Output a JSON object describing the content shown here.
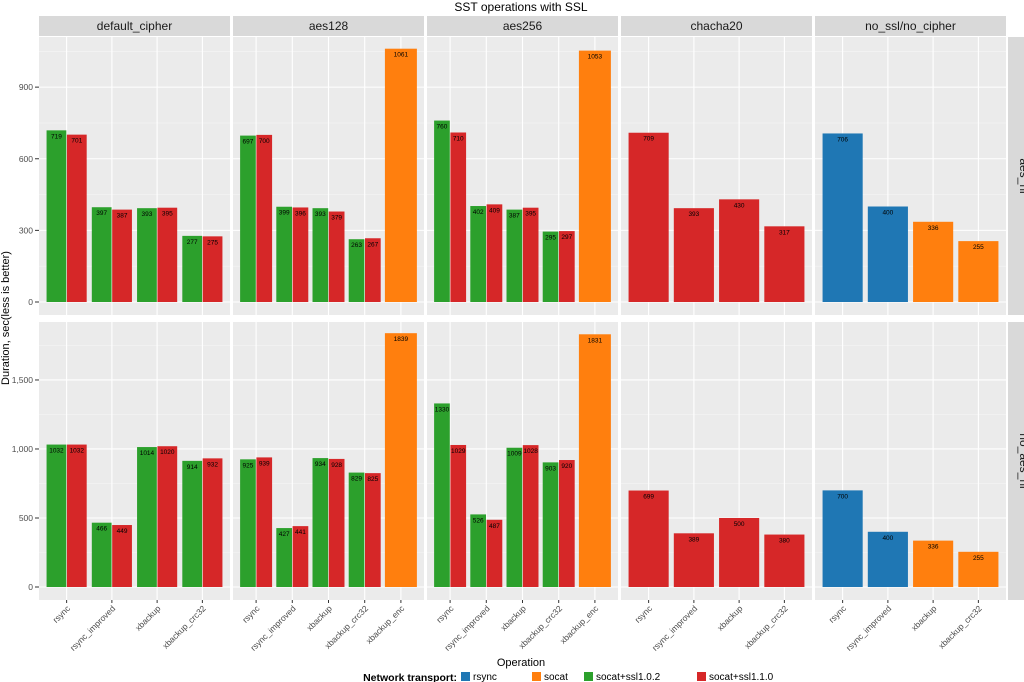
{
  "chart_data": {
    "type": "bar",
    "title": "SST operations with SSL",
    "xlabel": "Operation",
    "ylabel": "Duration, sec(less is better)",
    "legend": {
      "title": "Network transport:",
      "position": "bottom",
      "items": [
        {
          "name": "rsync",
          "color": "#1f77b4"
        },
        {
          "name": "socat",
          "color": "#ff7f0e"
        },
        {
          "name": "socat+ssl1.0.2",
          "color": "#2ca02c"
        },
        {
          "name": "socat+ssl1.1.0",
          "color": "#d62728"
        }
      ]
    },
    "columns": [
      "default_cipher",
      "aes128",
      "aes256",
      "chacha20",
      "no_ssl/no_cipher"
    ],
    "rows": [
      {
        "label": "aes_ni",
        "ylim": [
          0,
          1110
        ],
        "yticks": [
          0,
          300,
          600,
          900
        ],
        "ytick_labels": [
          "0",
          "300",
          "600",
          "900"
        ]
      },
      {
        "label": "no_aes_ni",
        "ylim": [
          0,
          1920
        ],
        "yticks": [
          0,
          500,
          1000,
          1500
        ],
        "ytick_labels": [
          "0",
          "500",
          "1,000",
          "1,500"
        ]
      }
    ],
    "categories": {
      "default_cipher": [
        "rsync",
        "rsync_improved",
        "xbackup",
        "xbackup_crc32"
      ],
      "aes128": [
        "rsync",
        "rsync_improved",
        "xbackup",
        "xbackup_crc32",
        "xbackup_enc"
      ],
      "aes256": [
        "rsync",
        "rsync_improved",
        "xbackup",
        "xbackup_crc32",
        "xbackup_enc"
      ],
      "chacha20": [
        "rsync",
        "rsync_improved",
        "xbackup",
        "xbackup_crc32"
      ],
      "no_ssl/no_cipher": [
        "rsync",
        "rsync_improved",
        "xbackup",
        "xbackup_crc32"
      ]
    },
    "panels": [
      {
        "row": "aes_ni",
        "col": "default_cipher",
        "bars": [
          {
            "cat": "rsync",
            "series": "socat+ssl1.0.2",
            "value": 719
          },
          {
            "cat": "rsync",
            "series": "socat+ssl1.1.0",
            "value": 701
          },
          {
            "cat": "rsync_improved",
            "series": "socat+ssl1.0.2",
            "value": 397
          },
          {
            "cat": "rsync_improved",
            "series": "socat+ssl1.1.0",
            "value": 387
          },
          {
            "cat": "xbackup",
            "series": "socat+ssl1.0.2",
            "value": 393
          },
          {
            "cat": "xbackup",
            "series": "socat+ssl1.1.0",
            "value": 395
          },
          {
            "cat": "xbackup_crc32",
            "series": "socat+ssl1.0.2",
            "value": 277
          },
          {
            "cat": "xbackup_crc32",
            "series": "socat+ssl1.1.0",
            "value": 275
          }
        ]
      },
      {
        "row": "aes_ni",
        "col": "aes128",
        "bars": [
          {
            "cat": "rsync",
            "series": "socat+ssl1.0.2",
            "value": 697
          },
          {
            "cat": "rsync",
            "series": "socat+ssl1.1.0",
            "value": 700
          },
          {
            "cat": "rsync_improved",
            "series": "socat+ssl1.0.2",
            "value": 399
          },
          {
            "cat": "rsync_improved",
            "series": "socat+ssl1.1.0",
            "value": 396
          },
          {
            "cat": "xbackup",
            "series": "socat+ssl1.0.2",
            "value": 393
          },
          {
            "cat": "xbackup",
            "series": "socat+ssl1.1.0",
            "value": 379
          },
          {
            "cat": "xbackup_crc32",
            "series": "socat+ssl1.0.2",
            "value": 263
          },
          {
            "cat": "xbackup_crc32",
            "series": "socat+ssl1.1.0",
            "value": 267
          },
          {
            "cat": "xbackup_enc",
            "series": "socat",
            "value": 1061
          }
        ]
      },
      {
        "row": "aes_ni",
        "col": "aes256",
        "bars": [
          {
            "cat": "rsync",
            "series": "socat+ssl1.0.2",
            "value": 760
          },
          {
            "cat": "rsync",
            "series": "socat+ssl1.1.0",
            "value": 710
          },
          {
            "cat": "rsync_improved",
            "series": "socat+ssl1.0.2",
            "value": 402
          },
          {
            "cat": "rsync_improved",
            "series": "socat+ssl1.1.0",
            "value": 409
          },
          {
            "cat": "xbackup",
            "series": "socat+ssl1.0.2",
            "value": 387
          },
          {
            "cat": "xbackup",
            "series": "socat+ssl1.1.0",
            "value": 395
          },
          {
            "cat": "xbackup_crc32",
            "series": "socat+ssl1.0.2",
            "value": 295
          },
          {
            "cat": "xbackup_crc32",
            "series": "socat+ssl1.1.0",
            "value": 297
          },
          {
            "cat": "xbackup_enc",
            "series": "socat",
            "value": 1053
          }
        ]
      },
      {
        "row": "aes_ni",
        "col": "chacha20",
        "bars": [
          {
            "cat": "rsync",
            "series": "socat+ssl1.1.0",
            "value": 709
          },
          {
            "cat": "rsync_improved",
            "series": "socat+ssl1.1.0",
            "value": 393
          },
          {
            "cat": "xbackup",
            "series": "socat+ssl1.1.0",
            "value": 430
          },
          {
            "cat": "xbackup_crc32",
            "series": "socat+ssl1.1.0",
            "value": 317
          }
        ]
      },
      {
        "row": "aes_ni",
        "col": "no_ssl/no_cipher",
        "bars": [
          {
            "cat": "rsync",
            "series": "rsync",
            "value": 706
          },
          {
            "cat": "rsync_improved",
            "series": "rsync",
            "value": 400
          },
          {
            "cat": "xbackup",
            "series": "socat",
            "value": 336
          },
          {
            "cat": "xbackup_crc32",
            "series": "socat",
            "value": 255
          }
        ]
      },
      {
        "row": "no_aes_ni",
        "col": "default_cipher",
        "bars": [
          {
            "cat": "rsync",
            "series": "socat+ssl1.0.2",
            "value": 1032
          },
          {
            "cat": "rsync",
            "series": "socat+ssl1.1.0",
            "value": 1032
          },
          {
            "cat": "rsync_improved",
            "series": "socat+ssl1.0.2",
            "value": 466
          },
          {
            "cat": "rsync_improved",
            "series": "socat+ssl1.1.0",
            "value": 449
          },
          {
            "cat": "xbackup",
            "series": "socat+ssl1.0.2",
            "value": 1014
          },
          {
            "cat": "xbackup",
            "series": "socat+ssl1.1.0",
            "value": 1020
          },
          {
            "cat": "xbackup_crc32",
            "series": "socat+ssl1.0.2",
            "value": 914
          },
          {
            "cat": "xbackup_crc32",
            "series": "socat+ssl1.1.0",
            "value": 932
          }
        ]
      },
      {
        "row": "no_aes_ni",
        "col": "aes128",
        "bars": [
          {
            "cat": "rsync",
            "series": "socat+ssl1.0.2",
            "value": 925
          },
          {
            "cat": "rsync",
            "series": "socat+ssl1.1.0",
            "value": 939
          },
          {
            "cat": "rsync_improved",
            "series": "socat+ssl1.0.2",
            "value": 427
          },
          {
            "cat": "rsync_improved",
            "series": "socat+ssl1.1.0",
            "value": 441
          },
          {
            "cat": "xbackup",
            "series": "socat+ssl1.0.2",
            "value": 934
          },
          {
            "cat": "xbackup",
            "series": "socat+ssl1.1.0",
            "value": 928
          },
          {
            "cat": "xbackup_crc32",
            "series": "socat+ssl1.0.2",
            "value": 829
          },
          {
            "cat": "xbackup_crc32",
            "series": "socat+ssl1.1.0",
            "value": 825
          },
          {
            "cat": "xbackup_enc",
            "series": "socat",
            "value": 1839
          }
        ]
      },
      {
        "row": "no_aes_ni",
        "col": "aes256",
        "bars": [
          {
            "cat": "rsync",
            "series": "socat+ssl1.0.2",
            "value": 1330
          },
          {
            "cat": "rsync",
            "series": "socat+ssl1.1.0",
            "value": 1029
          },
          {
            "cat": "rsync_improved",
            "series": "socat+ssl1.0.2",
            "value": 526
          },
          {
            "cat": "rsync_improved",
            "series": "socat+ssl1.1.0",
            "value": 487
          },
          {
            "cat": "xbackup",
            "series": "socat+ssl1.0.2",
            "value": 1009
          },
          {
            "cat": "xbackup",
            "series": "socat+ssl1.1.0",
            "value": 1028
          },
          {
            "cat": "xbackup_crc32",
            "series": "socat+ssl1.0.2",
            "value": 903
          },
          {
            "cat": "xbackup_crc32",
            "series": "socat+ssl1.1.0",
            "value": 920
          },
          {
            "cat": "xbackup_enc",
            "series": "socat",
            "value": 1831
          }
        ]
      },
      {
        "row": "no_aes_ni",
        "col": "chacha20",
        "bars": [
          {
            "cat": "rsync",
            "series": "socat+ssl1.1.0",
            "value": 699
          },
          {
            "cat": "rsync_improved",
            "series": "socat+ssl1.1.0",
            "value": 389
          },
          {
            "cat": "xbackup",
            "series": "socat+ssl1.1.0",
            "value": 500
          },
          {
            "cat": "xbackup_crc32",
            "series": "socat+ssl1.1.0",
            "value": 380
          }
        ]
      },
      {
        "row": "no_aes_ni",
        "col": "no_ssl/no_cipher",
        "bars": [
          {
            "cat": "rsync",
            "series": "rsync",
            "value": 700
          },
          {
            "cat": "rsync_improved",
            "series": "rsync",
            "value": 400
          },
          {
            "cat": "xbackup",
            "series": "socat",
            "value": 336
          },
          {
            "cat": "xbackup_crc32",
            "series": "socat",
            "value": 255
          }
        ]
      }
    ]
  }
}
